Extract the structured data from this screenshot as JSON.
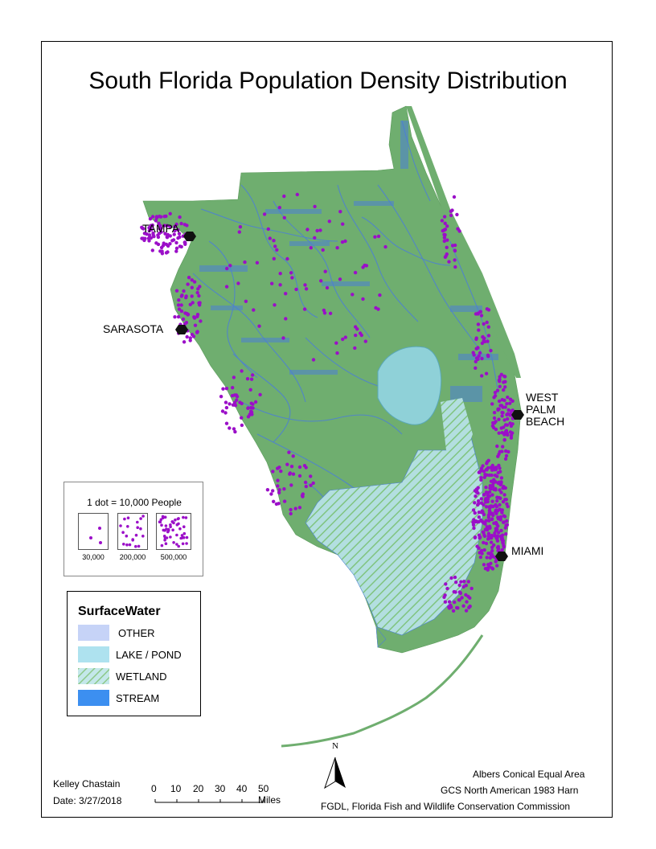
{
  "title": "South Florida Population Density Distribution",
  "cities": [
    {
      "id": "tampa",
      "lines": [
        "TAMPA"
      ]
    },
    {
      "id": "sarasota",
      "lines": [
        "SARASOTA"
      ]
    },
    {
      "id": "west-palm-beach",
      "lines": [
        "WEST",
        "PALM",
        "BEACH"
      ]
    },
    {
      "id": "miami",
      "lines": [
        "MIAMI"
      ]
    }
  ],
  "dot_legend": {
    "header": "1 dot = 10,000 People",
    "samples": [
      {
        "label": "30,000",
        "dots": 3
      },
      {
        "label": "200,000",
        "dots": 20
      },
      {
        "label": "500,000",
        "dots": 50
      }
    ],
    "dot_color": "#9b0fc8"
  },
  "legend": {
    "title": "SurfaceWater",
    "items": [
      {
        "label": "OTHER",
        "color": "#c6d3f7",
        "pattern": "solid"
      },
      {
        "label": "LAKE / POND",
        "color": "#aee2ef",
        "pattern": "solid"
      },
      {
        "label": "WETLAND",
        "color": "#bfe6e8",
        "pattern": "hatch",
        "hatch_color": "#8ec98a"
      },
      {
        "label": "STREAM",
        "color": "#3c8ff0",
        "pattern": "solid"
      }
    ]
  },
  "colors": {
    "land": "#6fae6f",
    "water_network": "#4c7fd6",
    "lake": "#8fd1d8",
    "wetland": "#b3dfe0"
  },
  "author": "Kelley Chastain",
  "date": "Date: 3/27/2018",
  "scale": {
    "ticks": [
      "0",
      "10",
      "20",
      "30",
      "40",
      "50 Miles"
    ]
  },
  "north_label": "N",
  "projection": "Albers Conical Equal Area",
  "datum": "GCS North American 1983 Harn",
  "source": "FGDL, Florida Fish and Wildlife Conservation Commission"
}
